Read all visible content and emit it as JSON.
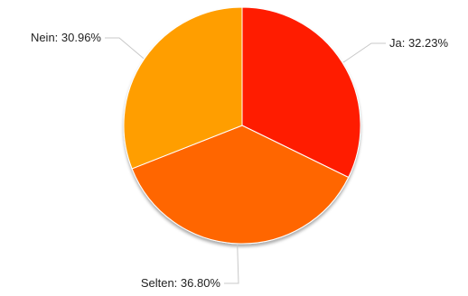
{
  "chart_data": {
    "type": "pie",
    "title": "",
    "slices": [
      {
        "label": "Ja",
        "value": 32.23,
        "display": "Ja: 32.23%",
        "color": "#ff1a00"
      },
      {
        "label": "Selten",
        "value": 36.8,
        "display": "Selten: 36.80%",
        "color": "#ff6600"
      },
      {
        "label": "Nein",
        "value": 30.96,
        "display": "Nein: 30.96%",
        "color": "#ff9e00"
      }
    ],
    "start_angle_deg": 0,
    "direction": "clockwise",
    "legend": "none",
    "data_labels": "outside-with-leader-lines"
  }
}
